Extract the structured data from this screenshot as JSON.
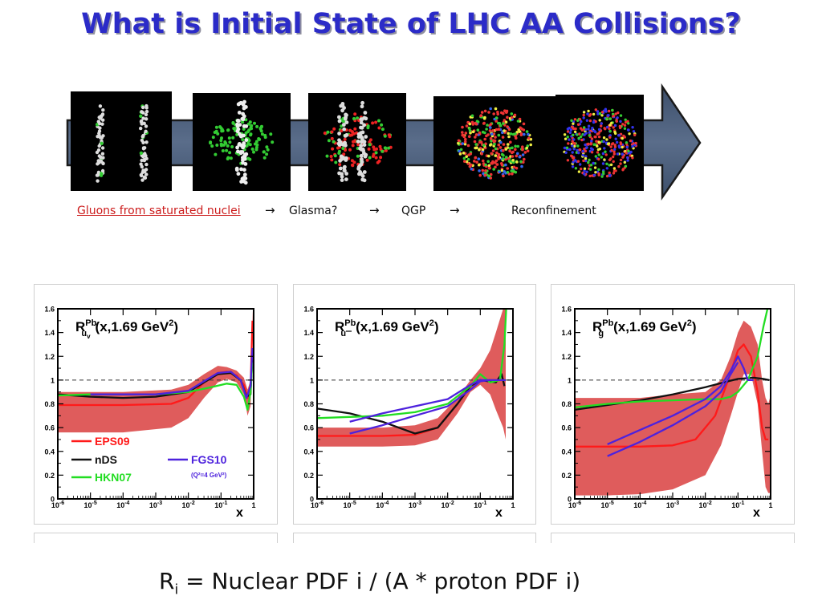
{
  "title": "What is Initial State of LHC AA Collisions?",
  "stages": {
    "gluons": "Gluons from saturated nuclei",
    "glasma": "Glasma?",
    "qgp": "QGP",
    "reconfinement": "Reconfinement",
    "arrow": "→"
  },
  "formula": {
    "r": "R",
    "sub": "i",
    "rest": " = Nuclear PDF i / (A * proton PDF i)"
  },
  "colors": {
    "eps09": "#ff1a1a",
    "eps09_band": "#d94040",
    "nds": "#111111",
    "hkn07": "#22dd22",
    "fgs10": "#4d22dd",
    "title": "#2b2bc8",
    "link": "#cc1b1b"
  },
  "chart_data": [
    {
      "type": "line",
      "title": "R_uv^Pb(x,1.69 GeV²)",
      "title_parts": {
        "base": "R",
        "sub": "u",
        "subsub": "v",
        "sup": "Pb",
        "arg": "(x,1.69 GeV",
        "sq": "2",
        "close": ")"
      },
      "xlabel": "x",
      "xscale": "log",
      "xlim": [
        1e-06,
        1
      ],
      "ylim": [
        0,
        1.6
      ],
      "yticks": [
        "0",
        "0.2",
        "0.4",
        "0.6",
        "0.8",
        "1",
        "1.2",
        "1.4",
        "1.6"
      ],
      "xtick_labels": [
        {
          "b": "10",
          "e": "-6"
        },
        {
          "b": "10",
          "e": "-5"
        },
        {
          "b": "10",
          "e": "-4"
        },
        {
          "b": "10",
          "e": "-3"
        },
        {
          "b": "10",
          "e": "-2"
        },
        {
          "b": "10",
          "e": "-1"
        },
        {
          "b": "1",
          "e": ""
        }
      ],
      "reference_line": 1,
      "legend": [
        {
          "name": "EPS09",
          "color": "#ff1a1a"
        },
        {
          "name": "nDS",
          "color": "#111111"
        },
        {
          "name": "HKN07",
          "color": "#22dd22"
        },
        {
          "name": "FGS10",
          "color": "#4d22dd"
        }
      ],
      "legend_note": "(Q²=4 GeV²)",
      "band": {
        "x": [
          1e-06,
          0.0001,
          0.003,
          0.01,
          0.03,
          0.08,
          0.15,
          0.3,
          0.5,
          0.65,
          0.8,
          0.9,
          0.95
        ],
        "lower": [
          0.56,
          0.56,
          0.6,
          0.68,
          0.85,
          0.98,
          1.01,
          0.98,
          0.88,
          0.7,
          0.78,
          1.2,
          1.6
        ],
        "upper": [
          0.9,
          0.9,
          0.92,
          0.96,
          1.05,
          1.12,
          1.11,
          1.08,
          1.02,
          0.92,
          1.0,
          1.45,
          1.6
        ]
      },
      "series": [
        {
          "name": "EPS09",
          "color": "#ff1a1a",
          "x": [
            1e-06,
            0.0001,
            0.003,
            0.01,
            0.03,
            0.08,
            0.15,
            0.3,
            0.5,
            0.65,
            0.8,
            0.92
          ],
          "y": [
            0.79,
            0.79,
            0.8,
            0.85,
            0.98,
            1.06,
            1.07,
            1.04,
            0.96,
            0.85,
            0.92,
            1.5
          ]
        },
        {
          "name": "nDS",
          "color": "#111111",
          "x": [
            1e-06,
            1e-05,
            0.0001,
            0.001,
            0.01,
            0.03,
            0.08,
            0.2,
            0.4,
            0.6,
            0.8,
            0.92
          ],
          "y": [
            0.88,
            0.86,
            0.85,
            0.86,
            0.9,
            0.98,
            1.05,
            1.06,
            1.0,
            0.86,
            0.88,
            1.2
          ]
        },
        {
          "name": "HKN07",
          "color": "#22dd22",
          "x": [
            1e-06,
            1e-05,
            0.0001,
            0.001,
            0.01,
            0.05,
            0.15,
            0.3,
            0.5,
            0.65,
            0.8,
            0.9
          ],
          "y": [
            0.87,
            0.88,
            0.88,
            0.88,
            0.9,
            0.94,
            0.97,
            0.96,
            0.86,
            0.75,
            0.9,
            1.15
          ]
        },
        {
          "name": "FGS10",
          "color": "#4d22dd",
          "x": [
            1e-05,
            0.0001,
            0.001,
            0.01,
            0.03,
            0.08,
            0.2,
            0.4,
            0.6,
            0.8,
            0.92
          ],
          "y": [
            0.88,
            0.88,
            0.88,
            0.91,
            0.99,
            1.06,
            1.07,
            1.0,
            0.85,
            0.95,
            1.27
          ]
        }
      ]
    },
    {
      "type": "line",
      "title": "R_ubar^Pb(x,1.69 GeV²)",
      "title_parts": {
        "base": "R",
        "sub": "u",
        "subsub": "",
        "sup": "Pb",
        "arg": "(x,1.69 GeV",
        "sq": "2",
        "close": ")"
      },
      "xlabel": "x",
      "xscale": "log",
      "xlim": [
        1e-06,
        1
      ],
      "ylim": [
        0,
        1.6
      ],
      "yticks": [
        "0",
        "0.2",
        "0.4",
        "0.6",
        "0.8",
        "1",
        "1.2",
        "1.4",
        "1.6"
      ],
      "xtick_labels": [
        {
          "b": "10",
          "e": "-6"
        },
        {
          "b": "10",
          "e": "-5"
        },
        {
          "b": "10",
          "e": "-4"
        },
        {
          "b": "10",
          "e": "-3"
        },
        {
          "b": "10",
          "e": "-2"
        },
        {
          "b": "10",
          "e": "-1"
        },
        {
          "b": "1",
          "e": ""
        }
      ],
      "reference_line": 1,
      "band": {
        "x": [
          1e-06,
          0.0001,
          0.001,
          0.005,
          0.02,
          0.05,
          0.1,
          0.2,
          0.3,
          0.5,
          0.6
        ],
        "lower": [
          0.44,
          0.44,
          0.45,
          0.5,
          0.72,
          0.9,
          0.96,
          0.88,
          0.75,
          0.6,
          0.5
        ],
        "upper": [
          0.6,
          0.6,
          0.62,
          0.68,
          0.85,
          1.0,
          1.1,
          1.25,
          1.4,
          1.6,
          1.6
        ]
      },
      "series": [
        {
          "name": "EPS09",
          "color": "#ff1a1a",
          "x": [
            1e-06,
            0.0001,
            0.001,
            0.005,
            0.02,
            0.05,
            0.1,
            0.2,
            0.4,
            0.6
          ],
          "y": [
            0.53,
            0.53,
            0.54,
            0.6,
            0.8,
            0.95,
            0.99,
            1.0,
            1.0,
            1.0
          ]
        },
        {
          "name": "nDS",
          "color": "#111111",
          "x": [
            1e-06,
            1e-05,
            0.0001,
            0.001,
            0.005,
            0.02,
            0.05,
            0.1,
            0.3,
            0.45,
            0.55
          ],
          "y": [
            0.76,
            0.72,
            0.65,
            0.55,
            0.6,
            0.8,
            0.95,
            1.0,
            0.98,
            1.05,
            0.95
          ]
        },
        {
          "name": "HKN07",
          "color": "#22dd22",
          "x": [
            1e-06,
            1e-05,
            0.0001,
            0.001,
            0.01,
            0.05,
            0.1,
            0.2,
            0.4,
            0.55,
            0.62
          ],
          "y": [
            0.68,
            0.69,
            0.7,
            0.73,
            0.8,
            0.95,
            1.05,
            0.98,
            1.0,
            1.3,
            1.6
          ]
        },
        {
          "name": "FGS10",
          "color": "#4d22dd",
          "x": [
            1e-05,
            0.0001,
            0.001,
            0.01,
            0.05,
            0.1,
            0.2,
            0.4,
            0.6
          ],
          "y": [
            0.65,
            0.72,
            0.78,
            0.84,
            0.96,
            1.0,
            1.0,
            1.0,
            1.0
          ]
        },
        {
          "name": "FGS10b",
          "color": "#4d22dd",
          "x": [
            1e-05,
            0.0001,
            0.001,
            0.01,
            0.05,
            0.1,
            0.2
          ],
          "y": [
            0.55,
            0.62,
            0.7,
            0.78,
            0.92,
            0.99,
            1.0
          ]
        }
      ]
    },
    {
      "type": "line",
      "title": "R_g^Pb(x,1.69 GeV²)",
      "title_parts": {
        "base": "R",
        "sub": "g",
        "subsub": "",
        "sup": "Pb",
        "arg": "(x,1.69 GeV",
        "sq": "2",
        "close": ")"
      },
      "xlabel": "x",
      "xscale": "log",
      "xlim": [
        1e-06,
        1
      ],
      "ylim": [
        0,
        1.6
      ],
      "yticks": [
        "0",
        "0.2",
        "0.4",
        "0.6",
        "0.8",
        "1",
        "1.2",
        "1.4",
        "1.6"
      ],
      "xtick_labels": [
        {
          "b": "10",
          "e": "-6"
        },
        {
          "b": "10",
          "e": "-5"
        },
        {
          "b": "10",
          "e": "-4"
        },
        {
          "b": "10",
          "e": "-3"
        },
        {
          "b": "10",
          "e": "-2"
        },
        {
          "b": "10",
          "e": "-1"
        },
        {
          "b": "1",
          "e": ""
        }
      ],
      "reference_line": 1,
      "band": {
        "x": [
          1e-06,
          1e-05,
          0.0001,
          0.001,
          0.01,
          0.03,
          0.06,
          0.1,
          0.15,
          0.25,
          0.4,
          0.55,
          0.7,
          0.85,
          0.95
        ],
        "lower": [
          0.03,
          0.03,
          0.04,
          0.08,
          0.2,
          0.45,
          0.7,
          0.9,
          1.05,
          1.05,
          0.8,
          0.4,
          0.1,
          0.05,
          0.05
        ],
        "upper": [
          0.85,
          0.85,
          0.85,
          0.88,
          0.9,
          1.0,
          1.2,
          1.4,
          1.5,
          1.45,
          1.3,
          1.0,
          0.85,
          0.8,
          0.85
        ]
      },
      "series": [
        {
          "name": "EPS09",
          "color": "#ff1a1a",
          "x": [
            1e-06,
            0.0001,
            0.001,
            0.005,
            0.02,
            0.05,
            0.1,
            0.15,
            0.25,
            0.4,
            0.55,
            0.7,
            0.85
          ],
          "y": [
            0.44,
            0.44,
            0.45,
            0.5,
            0.7,
            1.0,
            1.25,
            1.3,
            1.2,
            0.9,
            0.6,
            0.5,
            0.5
          ]
        },
        {
          "name": "nDS",
          "color": "#111111",
          "x": [
            1e-06,
            1e-05,
            0.0001,
            0.001,
            0.01,
            0.05,
            0.1,
            0.3,
            0.6,
            0.9
          ],
          "y": [
            0.75,
            0.79,
            0.83,
            0.88,
            0.94,
            0.99,
            1.01,
            1.02,
            1.01,
            1.0
          ]
        },
        {
          "name": "HKN07",
          "color": "#22dd22",
          "x": [
            1e-06,
            1e-05,
            0.0001,
            0.001,
            0.01,
            0.03,
            0.06,
            0.1,
            0.2,
            0.4,
            0.6,
            0.8
          ],
          "y": [
            0.77,
            0.8,
            0.82,
            0.83,
            0.84,
            0.84,
            0.86,
            0.9,
            1.0,
            1.2,
            1.45,
            1.6
          ]
        },
        {
          "name": "FGS10",
          "color": "#4d22dd",
          "x": [
            1e-05,
            0.0001,
            0.001,
            0.01,
            0.03,
            0.06,
            0.1,
            0.15,
            0.2,
            0.3
          ],
          "y": [
            0.46,
            0.58,
            0.7,
            0.84,
            0.95,
            1.08,
            1.2,
            1.1,
            1.0,
            1.0
          ]
        },
        {
          "name": "FGS10b",
          "color": "#4d22dd",
          "x": [
            1e-05,
            0.0001,
            0.001,
            0.01,
            0.03,
            0.06,
            0.1
          ],
          "y": [
            0.36,
            0.48,
            0.62,
            0.78,
            0.9,
            1.05,
            1.15
          ]
        }
      ]
    }
  ]
}
